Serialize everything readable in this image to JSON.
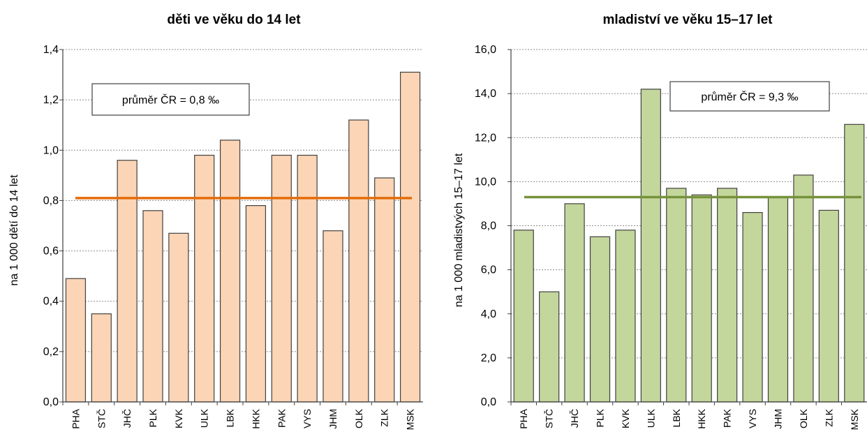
{
  "chart_data": [
    {
      "type": "bar",
      "title": "děti ve věku do 14 let",
      "ylabel": "na 1 000 dětí do 14 let",
      "xlabel": "",
      "ylim": [
        0,
        1.4
      ],
      "y_ticks": [
        "0,0",
        "0,2",
        "0,4",
        "0,6",
        "0,8",
        "1,0",
        "1,2",
        "1,4"
      ],
      "categories": [
        "PHA",
        "STČ",
        "JHČ",
        "PLK",
        "KVK",
        "ULK",
        "LBK",
        "HKK",
        "PAK",
        "VYS",
        "JHM",
        "OLK",
        "ZLK",
        "MSK"
      ],
      "values": [
        0.49,
        0.35,
        0.96,
        0.76,
        0.67,
        0.98,
        1.04,
        0.78,
        0.98,
        0.98,
        0.68,
        1.12,
        0.89,
        1.31
      ],
      "average": 0.81,
      "average_label": "průměr ČR = 0,8 ‰",
      "colors": {
        "bar": "#fbd5b5",
        "bar_edge": "#404040",
        "average_line": "#e46c0a"
      },
      "grid": true,
      "gridlines": "dotted horizontal"
    },
    {
      "type": "bar",
      "title": "mladiství ve věku 15–17 let",
      "ylabel": "na 1 000 mladistvých 15–17 let",
      "xlabel": "",
      "ylim": [
        0,
        16
      ],
      "y_ticks": [
        "0,0",
        "2,0",
        "4,0",
        "6,0",
        "8,0",
        "10,0",
        "12,0",
        "14,0",
        "16,0"
      ],
      "categories": [
        "PHA",
        "STČ",
        "JHČ",
        "PLK",
        "KVK",
        "ULK",
        "LBK",
        "HKK",
        "PAK",
        "VYS",
        "JHM",
        "OLK",
        "ZLK",
        "MSK"
      ],
      "values": [
        7.8,
        5.0,
        9.0,
        7.5,
        7.8,
        14.2,
        9.7,
        9.4,
        9.7,
        8.6,
        9.3,
        10.3,
        8.7,
        12.6
      ],
      "average": 9.3,
      "average_label": "průměr ČR = 9,3 ‰",
      "colors": {
        "bar": "#c3d69b",
        "bar_edge": "#404040",
        "average_line": "#76923c"
      },
      "grid": true,
      "gridlines": "dotted horizontal"
    }
  ]
}
